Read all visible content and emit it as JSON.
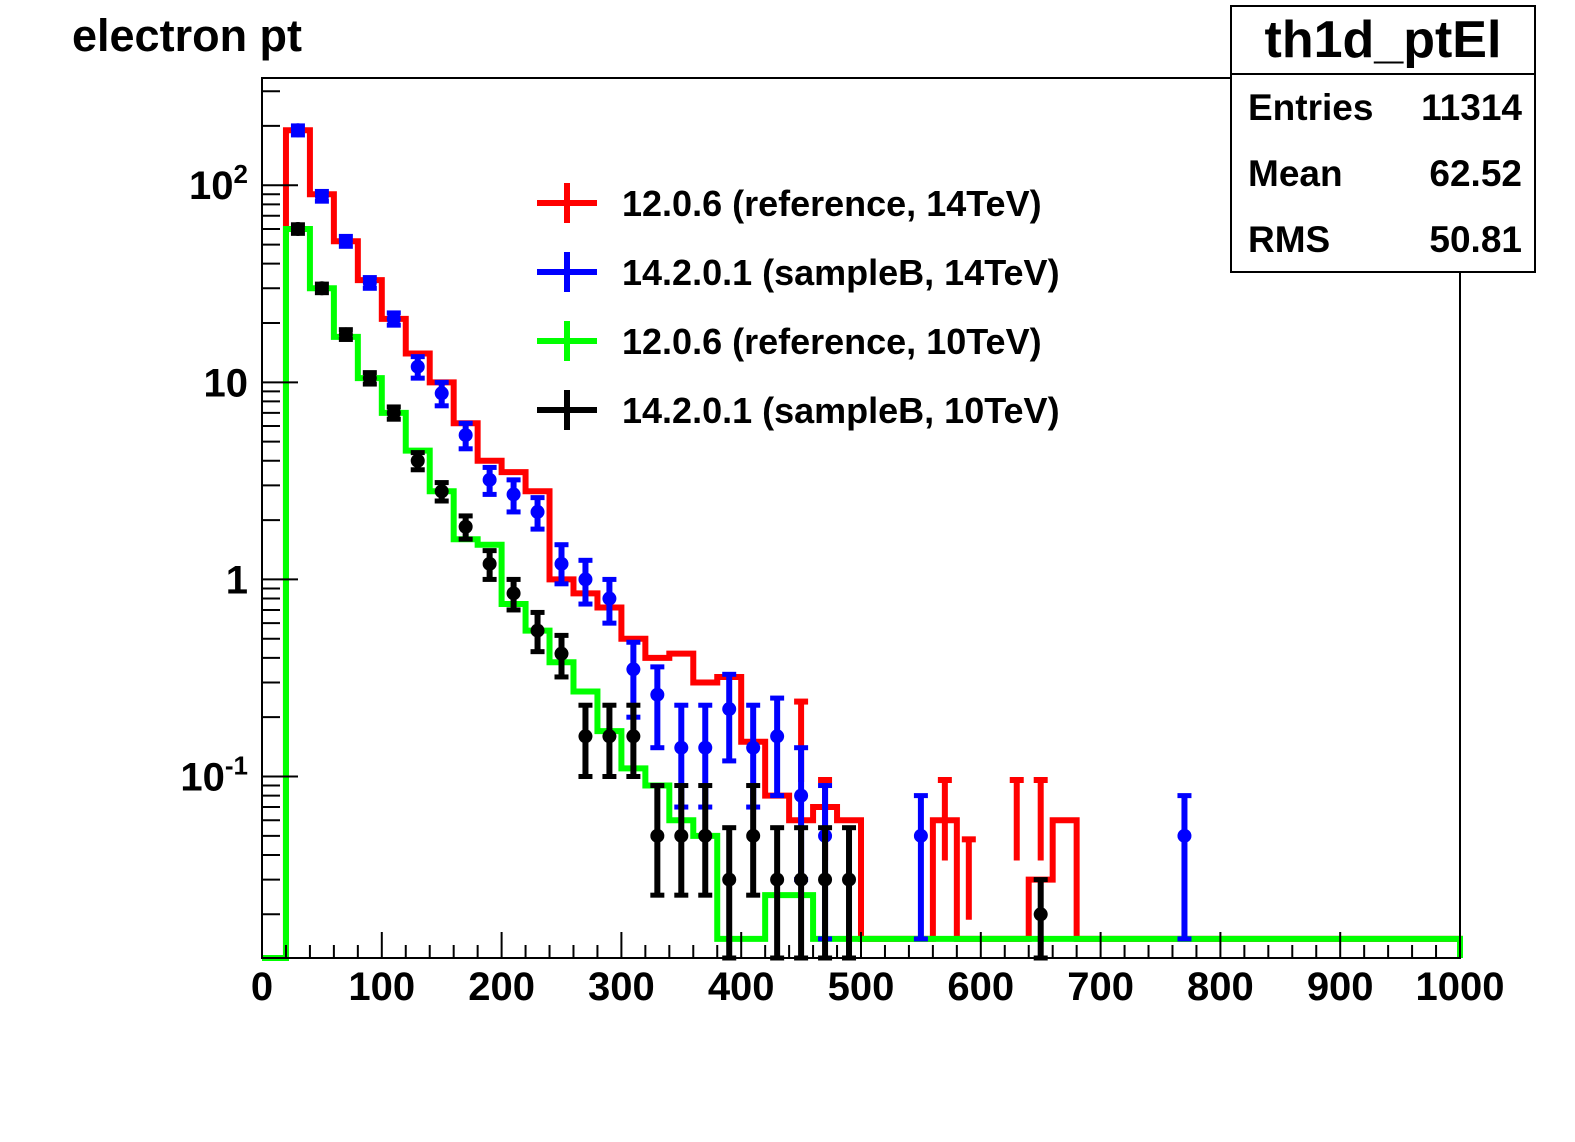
{
  "title": "electron pt",
  "stats": {
    "name": "th1d_ptEl",
    "rows": [
      {
        "label": "Entries",
        "value": "11314"
      },
      {
        "label": "Mean",
        "value": "62.52"
      },
      {
        "label": "RMS",
        "value": "50.81"
      }
    ]
  },
  "chart_data": {
    "type": "line",
    "title": "electron pt",
    "xlabel": "",
    "ylabel": "",
    "xlim": [
      0,
      1000
    ],
    "ylim": [
      0.012,
      350
    ],
    "yscale": "log",
    "grid": false,
    "legend_position": "upper-center",
    "x_ticks": [
      0,
      100,
      200,
      300,
      400,
      500,
      600,
      700,
      800,
      900,
      1000
    ],
    "x_tick_labels": [
      "0",
      "100",
      "200",
      "300",
      "400",
      "500",
      "600",
      "700",
      "800",
      "900",
      "1000"
    ],
    "y_ticks": [
      0.1,
      1,
      10,
      100
    ],
    "y_tick_labels": [
      "10^-1",
      "1",
      "10",
      "10^2"
    ],
    "bin_width": 20,
    "series": [
      {
        "name": "12.0.6 (reference, 14TeV)",
        "color": "#ff0000",
        "style": "histogram",
        "x": [
          10,
          30,
          50,
          70,
          90,
          110,
          130,
          150,
          170,
          190,
          210,
          230,
          250,
          270,
          290,
          310,
          330,
          350,
          370,
          390,
          410,
          430,
          450,
          470,
          490,
          510,
          530,
          550,
          570,
          590,
          610,
          630,
          650,
          670,
          690,
          710,
          730,
          750,
          770,
          790,
          810,
          830,
          850,
          870,
          890,
          910,
          930,
          950,
          970,
          990
        ],
        "values": [
          0,
          190,
          90,
          52,
          33,
          21,
          14,
          10,
          6.2,
          4.0,
          3.5,
          2.8,
          1.0,
          0.85,
          0.72,
          0.5,
          0.4,
          0.42,
          0.3,
          0.32,
          0.15,
          0.08,
          0.06,
          0.07,
          0.06,
          0.015,
          0.015,
          0.015,
          0.06,
          0.015,
          0.015,
          0.015,
          0.03,
          0.06,
          0.015,
          0.015,
          0.015,
          0.015,
          0.015,
          0.015,
          0.015,
          0.015,
          0.015,
          0.015,
          0.015,
          0.015,
          0.015,
          0.015,
          0.015,
          0.015
        ],
        "errors_x": [
          450,
          470,
          570,
          590,
          630,
          650
        ],
        "error_values": [
          0.15,
          0.06,
          0.06,
          0.03,
          0.06,
          0.06
        ]
      },
      {
        "name": "14.2.0.1 (sampleB, 14TeV)",
        "color": "#0000ff",
        "style": "points",
        "x": [
          30,
          50,
          70,
          90,
          110,
          130,
          150,
          170,
          190,
          210,
          230,
          250,
          270,
          290,
          310,
          330,
          350,
          370,
          390,
          410,
          430,
          450,
          470,
          550,
          770
        ],
        "values": [
          190,
          88,
          52,
          32,
          21,
          12,
          8.8,
          5.4,
          3.2,
          2.7,
          2.2,
          1.2,
          1.0,
          0.8,
          0.35,
          0.26,
          0.14,
          0.14,
          0.22,
          0.14,
          0.16,
          0.08,
          0.05,
          0.05,
          0.05
        ],
        "err_low": [
          180,
          83,
          49,
          30,
          19.5,
          10.5,
          7.6,
          4.6,
          2.7,
          2.2,
          1.8,
          0.95,
          0.75,
          0.6,
          0.2,
          0.14,
          0.07,
          0.07,
          0.12,
          0.07,
          0.08,
          0.03,
          0.015,
          0.015,
          0.015
        ],
        "err_high": [
          200,
          93,
          55,
          34,
          22.5,
          13.5,
          10,
          6.2,
          3.7,
          3.2,
          2.6,
          1.5,
          1.25,
          1.0,
          0.48,
          0.36,
          0.23,
          0.23,
          0.33,
          0.23,
          0.25,
          0.14,
          0.09,
          0.08,
          0.08
        ]
      },
      {
        "name": "12.0.6 (reference, 10TeV)",
        "color": "#00ff00",
        "style": "histogram",
        "x": [
          10,
          30,
          50,
          70,
          90,
          110,
          130,
          150,
          170,
          190,
          210,
          230,
          250,
          270,
          290,
          310,
          330,
          350,
          370,
          390,
          410,
          430,
          450,
          470,
          490,
          510,
          530,
          550,
          570,
          590,
          610,
          630,
          650,
          670,
          690,
          710,
          730,
          750,
          770,
          790,
          810,
          830,
          850,
          870,
          890,
          910,
          930,
          950,
          970,
          990
        ],
        "values": [
          0,
          60,
          30,
          17,
          10.5,
          7,
          4.5,
          2.8,
          1.6,
          1.5,
          0.75,
          0.55,
          0.38,
          0.27,
          0.17,
          0.11,
          0.09,
          0.06,
          0.05,
          0.015,
          0.015,
          0.025,
          0.025,
          0.015,
          0.015,
          0.015,
          0.015,
          0.015,
          0.015,
          0.015,
          0.015,
          0.015,
          0.015,
          0.015,
          0.015,
          0.015,
          0.015,
          0.015,
          0.015,
          0.015,
          0.015,
          0.015,
          0.015,
          0.015,
          0.015,
          0.015,
          0.015,
          0.015,
          0.015,
          0.015
        ]
      },
      {
        "name": "14.2.0.1 (sampleB, 10TeV)",
        "color": "#000000",
        "style": "points",
        "x": [
          30,
          50,
          70,
          90,
          110,
          130,
          150,
          170,
          190,
          210,
          230,
          250,
          270,
          290,
          310,
          330,
          350,
          370,
          390,
          410,
          430,
          450,
          470,
          490,
          650
        ],
        "values": [
          60,
          30,
          17.5,
          10.5,
          7,
          4,
          2.8,
          1.85,
          1.2,
          0.85,
          0.55,
          0.42,
          0.16,
          0.16,
          0.16,
          0.05,
          0.05,
          0.05,
          0.03,
          0.05,
          0.03,
          0.03,
          0.03,
          0.03,
          0.02
        ],
        "err_low": [
          57,
          28.5,
          16.5,
          9.8,
          6.5,
          3.6,
          2.5,
          1.6,
          1.0,
          0.7,
          0.43,
          0.32,
          0.1,
          0.1,
          0.1,
          0.025,
          0.025,
          0.025,
          0.012,
          0.025,
          0.012,
          0.012,
          0.012,
          0.012,
          0.012
        ],
        "err_high": [
          63,
          31.5,
          18.5,
          11.2,
          7.5,
          4.4,
          3.1,
          2.1,
          1.4,
          1.0,
          0.68,
          0.52,
          0.23,
          0.23,
          0.23,
          0.09,
          0.09,
          0.09,
          0.055,
          0.09,
          0.055,
          0.055,
          0.055,
          0.055,
          0.03
        ]
      }
    ]
  }
}
